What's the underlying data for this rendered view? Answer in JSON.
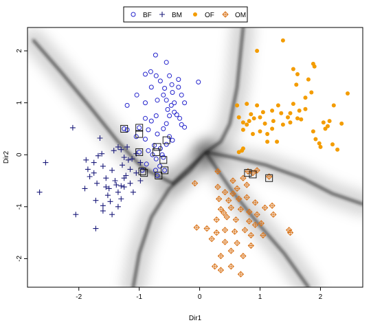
{
  "chart_data": {
    "type": "scatter",
    "title": "",
    "xlabel": "Dir1",
    "ylabel": "Dir2",
    "xlim": [
      -2.85,
      2.7
    ],
    "ylim": [
      -2.55,
      2.45
    ],
    "xticks": [
      -2,
      -1,
      0,
      1,
      2
    ],
    "yticks": [
      -2,
      -1,
      0,
      1,
      2
    ],
    "background": "grayscale decision-boundary shading",
    "legend": {
      "placement": "top-center",
      "entries": [
        {
          "label": "BF",
          "marker": "open-circle",
          "color": "#2222cc"
        },
        {
          "label": "BM",
          "marker": "plus",
          "color": "#1a1a7a"
        },
        {
          "label": "OF",
          "marker": "filled-circle",
          "color": "#f39c00"
        },
        {
          "label": "OM",
          "marker": "diamond-plus",
          "color": "#d9741a"
        }
      ]
    },
    "series": [
      {
        "name": "BF",
        "marker": "open-circle",
        "color": "#2222cc",
        "points": [
          [
            -0.73,
            1.92
          ],
          [
            -0.55,
            1.78
          ],
          [
            -0.81,
            1.6
          ],
          [
            -0.9,
            1.55
          ],
          [
            -0.72,
            1.52
          ],
          [
            -0.5,
            1.52
          ],
          [
            -0.35,
            1.45
          ],
          [
            -0.65,
            1.42
          ],
          [
            -0.46,
            1.35
          ],
          [
            -0.8,
            1.3
          ],
          [
            -0.58,
            1.28
          ],
          [
            -0.35,
            1.3
          ],
          [
            -0.02,
            1.4
          ],
          [
            -0.6,
            1.15
          ],
          [
            -0.45,
            1.2
          ],
          [
            -0.3,
            1.15
          ],
          [
            -1.04,
            1.15
          ],
          [
            -0.7,
            1.05
          ],
          [
            -0.55,
            1.05
          ],
          [
            -0.42,
            1.0
          ],
          [
            -0.25,
            1.0
          ],
          [
            -0.9,
            1.0
          ],
          [
            -1.2,
            0.95
          ],
          [
            -0.47,
            0.95
          ],
          [
            -0.53,
            0.87
          ],
          [
            -0.42,
            0.82
          ],
          [
            -0.38,
            0.77
          ],
          [
            -0.72,
            0.75
          ],
          [
            -0.5,
            0.75
          ],
          [
            -0.33,
            0.7
          ],
          [
            -0.9,
            0.7
          ],
          [
            -0.8,
            0.65
          ],
          [
            -0.55,
            0.6
          ],
          [
            -0.3,
            0.58
          ],
          [
            -0.25,
            0.53
          ],
          [
            -0.6,
            0.5
          ],
          [
            -1.0,
            0.52
          ],
          [
            -0.85,
            0.48
          ],
          [
            -0.7,
            0.4
          ],
          [
            -0.5,
            0.35
          ],
          [
            -1.05,
            0.35
          ],
          [
            -0.9,
            0.3
          ],
          [
            -0.75,
            0.18
          ],
          [
            -0.65,
            0.12
          ],
          [
            -0.85,
            0.08
          ],
          [
            -1.0,
            0.05
          ],
          [
            -0.78,
            0.0
          ],
          [
            -0.72,
            -0.08
          ],
          [
            -0.6,
            -0.05
          ],
          [
            -0.88,
            -0.18
          ],
          [
            -0.66,
            -0.22
          ],
          [
            -0.95,
            -0.3
          ],
          [
            -0.73,
            -0.3
          ],
          [
            -0.58,
            -0.3
          ],
          [
            -0.7,
            -0.4
          ],
          [
            -1.25,
            0.5
          ],
          [
            -0.55,
            0.2
          ],
          [
            -0.45,
            0.28
          ],
          [
            -0.62,
            0.0
          ],
          [
            -1.2,
            0.48
          ]
        ]
      },
      {
        "name": "BM",
        "marker": "plus",
        "color": "#1a1a7a",
        "points": [
          [
            -2.1,
            0.52
          ],
          [
            -2.55,
            -0.15
          ],
          [
            -2.65,
            -0.72
          ],
          [
            -2.05,
            -1.15
          ],
          [
            -1.88,
            -0.1
          ],
          [
            -1.85,
            -0.28
          ],
          [
            -1.75,
            -0.15
          ],
          [
            -1.82,
            -0.42
          ],
          [
            -1.9,
            -0.65
          ],
          [
            -1.7,
            -0.55
          ],
          [
            -1.75,
            -0.35
          ],
          [
            -1.68,
            -0.02
          ],
          [
            -1.6,
            -0.22
          ],
          [
            -1.55,
            -0.45
          ],
          [
            -1.5,
            -0.65
          ],
          [
            -1.45,
            -0.3
          ],
          [
            -1.4,
            -0.5
          ],
          [
            -1.35,
            -0.72
          ],
          [
            -1.3,
            -0.85
          ],
          [
            -1.25,
            -0.62
          ],
          [
            -1.22,
            -0.4
          ],
          [
            -1.28,
            -0.2
          ],
          [
            -1.18,
            -0.1
          ],
          [
            -1.15,
            -0.55
          ],
          [
            -1.1,
            -0.72
          ],
          [
            -1.05,
            -0.35
          ],
          [
            -0.98,
            -0.5
          ],
          [
            -1.52,
            -0.78
          ],
          [
            -1.48,
            -0.9
          ],
          [
            -1.6,
            -0.98
          ],
          [
            -1.72,
            -0.88
          ],
          [
            -1.6,
            -1.08
          ],
          [
            -1.35,
            -1.0
          ],
          [
            -1.45,
            -1.15
          ],
          [
            -1.72,
            -1.42
          ],
          [
            -1.62,
            0.02
          ],
          [
            -1.42,
            0.08
          ],
          [
            -1.3,
            0.1
          ],
          [
            -1.25,
            -0.05
          ],
          [
            -1.2,
            0.15
          ],
          [
            -1.35,
            0.15
          ],
          [
            -1.12,
            -0.08
          ],
          [
            -1.25,
            -0.45
          ],
          [
            -1.3,
            -0.6
          ],
          [
            -1.65,
            0.32
          ],
          [
            -1.05,
            0.02
          ],
          [
            -0.98,
            -0.15
          ],
          [
            -1.15,
            -0.28
          ],
          [
            -1.38,
            -0.58
          ],
          [
            -1.55,
            -0.62
          ]
        ]
      },
      {
        "name": "OF",
        "marker": "filled-circle",
        "color": "#f39c00",
        "points": [
          [
            0.95,
            2.0
          ],
          [
            1.38,
            2.2
          ],
          [
            1.88,
            1.75
          ],
          [
            1.9,
            1.7
          ],
          [
            1.55,
            1.65
          ],
          [
            1.8,
            1.45
          ],
          [
            1.62,
            1.55
          ],
          [
            1.85,
            1.2
          ],
          [
            1.6,
            1.35
          ],
          [
            1.75,
            1.1
          ],
          [
            2.45,
            1.18
          ],
          [
            0.62,
            0.95
          ],
          [
            0.78,
            0.98
          ],
          [
            0.95,
            0.95
          ],
          [
            1.05,
            0.82
          ],
          [
            0.85,
            0.78
          ],
          [
            1.0,
            0.72
          ],
          [
            1.2,
            0.85
          ],
          [
            1.3,
            0.95
          ],
          [
            1.35,
            0.8
          ],
          [
            1.55,
            0.98
          ],
          [
            1.5,
            0.8
          ],
          [
            1.65,
            0.85
          ],
          [
            1.75,
            0.88
          ],
          [
            2.22,
            0.95
          ],
          [
            0.72,
            0.62
          ],
          [
            0.82,
            0.65
          ],
          [
            0.65,
            0.72
          ],
          [
            0.9,
            0.7
          ],
          [
            1.08,
            0.6
          ],
          [
            1.22,
            0.65
          ],
          [
            1.2,
            0.5
          ],
          [
            1.0,
            0.45
          ],
          [
            0.72,
            0.48
          ],
          [
            0.88,
            0.4
          ],
          [
            1.38,
            0.58
          ],
          [
            1.5,
            0.62
          ],
          [
            1.62,
            0.7
          ],
          [
            2.05,
            0.62
          ],
          [
            2.12,
            0.55
          ],
          [
            2.08,
            0.5
          ],
          [
            2.35,
            0.6
          ],
          [
            1.88,
            0.45
          ],
          [
            1.92,
            0.3
          ],
          [
            2.2,
            0.2
          ],
          [
            2.28,
            0.1
          ],
          [
            1.98,
            0.22
          ],
          [
            1.12,
            0.25
          ],
          [
            1.28,
            0.25
          ],
          [
            0.65,
            0.05
          ],
          [
            0.7,
            0.08
          ],
          [
            0.72,
            0.12
          ],
          [
            2.0,
            0.15
          ],
          [
            2.15,
            0.65
          ],
          [
            1.12,
            0.4
          ],
          [
            0.78,
            0.58
          ],
          [
            1.46,
            0.72
          ],
          [
            1.68,
            0.68
          ]
        ]
      },
      {
        "name": "OM",
        "marker": "diamond-plus",
        "color": "#d9741a",
        "points": [
          [
            0.8,
            -0.32
          ],
          [
            0.88,
            -0.35
          ],
          [
            0.95,
            -0.3
          ],
          [
            1.15,
            -0.42
          ],
          [
            0.3,
            -0.32
          ],
          [
            0.55,
            -0.5
          ],
          [
            0.72,
            -0.45
          ],
          [
            -0.08,
            -0.55
          ],
          [
            0.3,
            -0.62
          ],
          [
            0.42,
            -0.72
          ],
          [
            0.55,
            -0.75
          ],
          [
            0.62,
            -0.65
          ],
          [
            0.78,
            -0.58
          ],
          [
            0.32,
            -0.85
          ],
          [
            0.48,
            -0.88
          ],
          [
            0.65,
            -0.85
          ],
          [
            0.78,
            -0.82
          ],
          [
            0.92,
            -0.92
          ],
          [
            0.35,
            -1.05
          ],
          [
            0.52,
            -1.02
          ],
          [
            0.68,
            -1.05
          ],
          [
            0.82,
            -1.1
          ],
          [
            0.95,
            -1.15
          ],
          [
            1.08,
            -1.02
          ],
          [
            1.22,
            -1.15
          ],
          [
            0.28,
            -1.25
          ],
          [
            0.45,
            -1.2
          ],
          [
            0.6,
            -1.25
          ],
          [
            0.82,
            -1.28
          ],
          [
            0.92,
            -1.35
          ],
          [
            1.02,
            -1.32
          ],
          [
            -0.05,
            -1.4
          ],
          [
            0.12,
            -1.42
          ],
          [
            0.28,
            -1.5
          ],
          [
            0.42,
            -1.45
          ],
          [
            0.58,
            -1.48
          ],
          [
            0.75,
            -1.45
          ],
          [
            0.85,
            -1.55
          ],
          [
            1.05,
            -1.55
          ],
          [
            0.2,
            -1.62
          ],
          [
            0.42,
            -1.68
          ],
          [
            0.62,
            -1.7
          ],
          [
            0.85,
            -1.75
          ],
          [
            0.35,
            -1.95
          ],
          [
            0.52,
            -1.85
          ],
          [
            0.72,
            -1.95
          ],
          [
            0.25,
            -2.15
          ],
          [
            0.35,
            -2.22
          ],
          [
            0.52,
            -2.15
          ],
          [
            0.68,
            -2.3
          ],
          [
            1.48,
            -1.45
          ],
          [
            1.5,
            -1.5
          ],
          [
            1.2,
            -0.98
          ],
          [
            0.4,
            -1.12
          ]
        ]
      }
    ],
    "highlighted": [
      [
        -1.25,
        0.5
      ],
      [
        -1.0,
        0.52
      ],
      [
        -1.0,
        0.4
      ],
      [
        -0.55,
        0.28
      ],
      [
        -0.7,
        0.15
      ],
      [
        -1.0,
        0.05
      ],
      [
        -0.72,
        0.05
      ],
      [
        -0.6,
        -0.1
      ],
      [
        -0.95,
        -0.32
      ],
      [
        -0.92,
        -0.35
      ],
      [
        -0.58,
        -0.3
      ],
      [
        -0.68,
        -0.4
      ],
      [
        0.8,
        -0.35
      ],
      [
        0.88,
        -0.38
      ],
      [
        1.15,
        -0.45
      ]
    ]
  }
}
